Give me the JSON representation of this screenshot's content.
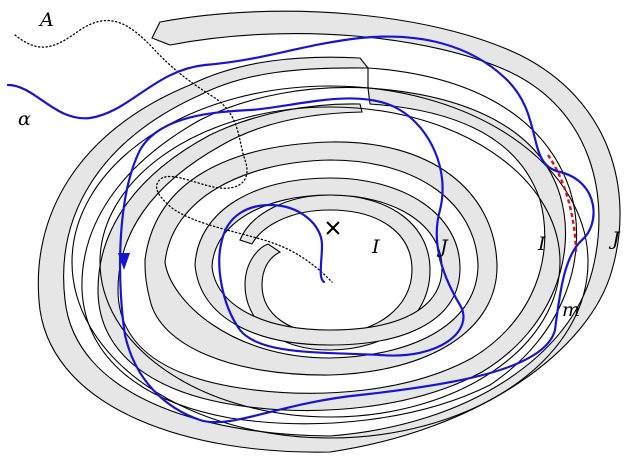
{
  "labels": {
    "curve_A": "A",
    "curve_alpha": "α",
    "annulus_I_inner": "I",
    "annulus_J_inner": "J",
    "annulus_I_outer": "I",
    "annulus_J_outer": "J",
    "region_m": "m"
  },
  "colors": {
    "band_fill": "#e6e6e6",
    "alpha_curve": "#1515d6",
    "red_arc": "#e01010"
  },
  "icons": {
    "center_marker": "cross-mark"
  }
}
